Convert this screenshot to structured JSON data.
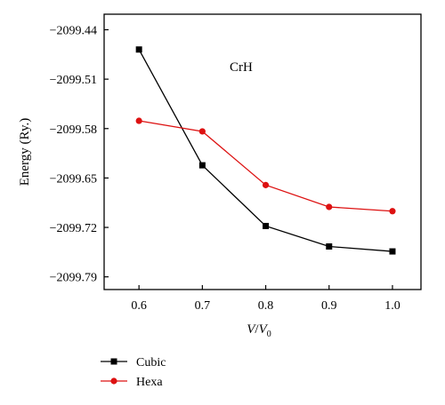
{
  "chart_data": {
    "type": "line",
    "title": "",
    "annotation": "CrH",
    "xlabel_main": "V",
    "xlabel_sep": "/",
    "xlabel_sub_base": "V",
    "xlabel_sub": "0",
    "ylabel": "Energy (Ry.)",
    "x": [
      0.6,
      0.7,
      0.8,
      0.9,
      1.0
    ],
    "xticks": [
      "0.6",
      "0.7",
      "0.8",
      "0.9",
      "1.0"
    ],
    "yticks": [
      "−2099.44",
      "−2099.51",
      "−2099.58",
      "−2099.65",
      "−2099.72",
      "−2099.79"
    ],
    "ytick_values": [
      -2099.44,
      -2099.51,
      -2099.58,
      -2099.65,
      -2099.72,
      -2099.79
    ],
    "xlim": [
      0.545,
      1.045
    ],
    "ylim": [
      -2099.808,
      -2099.418
    ],
    "grid": false,
    "legend_position": "bottom-left",
    "series": [
      {
        "name": "Cubic",
        "color": "#000000",
        "marker": "square",
        "values": [
          -2099.468,
          -2099.632,
          -2099.718,
          -2099.747,
          -2099.754
        ]
      },
      {
        "name": "Hexa",
        "color": "#dd1111",
        "marker": "circle",
        "values": [
          -2099.569,
          -2099.584,
          -2099.66,
          -2099.691,
          -2099.697
        ]
      }
    ]
  }
}
